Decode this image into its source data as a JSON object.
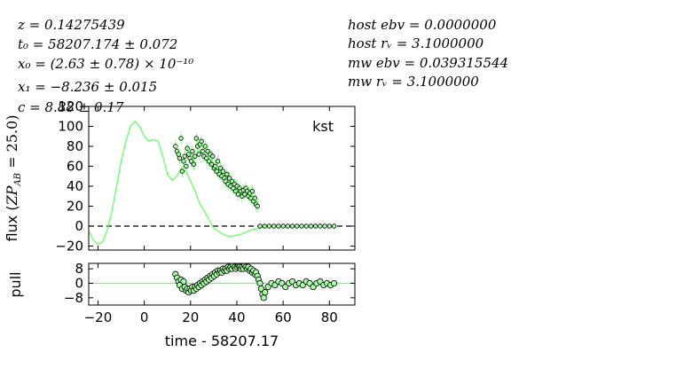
{
  "fit_params_left": [
    "z = 0.14275439",
    "t₀ = 58207.174 ± 0.072",
    "x₀ = (2.63 ± 0.78) × 10⁻¹⁰",
    "x₁ = −8.236 ± 0.015",
    "c = 8.88 ± 0.17"
  ],
  "fit_params_right": [
    "host ebv = 0.0000000",
    "host rᵥ = 3.1000000",
    "mw ebv = 0.039315544",
    "mw rᵥ = 3.1000000"
  ],
  "colors": {
    "model": "#66ff66",
    "points": "#a6ffa6",
    "edge": "#000000",
    "zero_line": "#000000"
  },
  "chart_data": [
    {
      "type": "scatter",
      "panel": "flux",
      "band_label": "kst",
      "ylabel": "flux (ZPₐʙ = 25.0)",
      "ylabel_parts": {
        "main": "flux (",
        "sub": "ZP",
        "subscript": "AB",
        "tail": " = 25.0)"
      },
      "xlim": [
        -24,
        91
      ],
      "ylim": [
        -24,
        120
      ],
      "yticks": [
        -20,
        0,
        20,
        40,
        60,
        80,
        100,
        120
      ],
      "xticks": [
        -20,
        0,
        20,
        40,
        60,
        80
      ],
      "zero_line": "dashed",
      "model": {
        "x": [
          -24,
          -22,
          -20,
          -18,
          -16,
          -14,
          -12,
          -10,
          -8,
          -6,
          -4,
          -2,
          0,
          2,
          4,
          6,
          8,
          10,
          12,
          14,
          16,
          18,
          20,
          22,
          24,
          26,
          28,
          30,
          32,
          34,
          36,
          38,
          40,
          42,
          44,
          46,
          48,
          50,
          52,
          54
        ],
        "y": [
          -5,
          -14,
          -18,
          -16,
          -4,
          15,
          40,
          65,
          85,
          100,
          105,
          100,
          90,
          85,
          87,
          85,
          70,
          52,
          46,
          50,
          58,
          55,
          45,
          35,
          22,
          15,
          6,
          -2,
          -5,
          -8,
          -10,
          -10,
          -9,
          -8,
          -6,
          -4,
          -3,
          -2,
          -1,
          0
        ]
      },
      "series": [
        {
          "name": "kst",
          "x": [
            13.5,
            14.2,
            14.8,
            15.3,
            15.9,
            16.4,
            17.0,
            17.5,
            18.1,
            18.6,
            19.2,
            19.7,
            20.3,
            20.8,
            21.4,
            21.9,
            22.5,
            23.0,
            23.6,
            24.1,
            24.7,
            25.2,
            25.8,
            26.3,
            26.9,
            27.4,
            28.0,
            28.5,
            29.1,
            29.6,
            30.2,
            30.7,
            31.3,
            31.8,
            32.4,
            32.9,
            33.5,
            34.0,
            34.6,
            35.1,
            35.7,
            36.2,
            36.8,
            37.3,
            37.9,
            38.4,
            39.0,
            39.5,
            40.1,
            40.6,
            41.2,
            41.7,
            42.3,
            42.8,
            43.4,
            43.9,
            44.5,
            45.0,
            45.6,
            46.1,
            46.7,
            47.2,
            47.8,
            48.3,
            48.9,
            50,
            52,
            54,
            56,
            58,
            60,
            62,
            64,
            66,
            68,
            70,
            72,
            74,
            76,
            78,
            80,
            82
          ],
          "y": [
            80,
            75,
            72,
            68,
            88,
            55,
            65,
            70,
            60,
            78,
            72,
            68,
            65,
            75,
            62,
            70,
            88,
            80,
            72,
            82,
            85,
            75,
            70,
            80,
            68,
            75,
            65,
            72,
            62,
            70,
            58,
            60,
            55,
            65,
            52,
            58,
            50,
            55,
            48,
            45,
            52,
            42,
            48,
            40,
            45,
            38,
            42,
            35,
            40,
            32,
            38,
            35,
            30,
            36,
            32,
            38,
            35,
            30,
            33,
            28,
            35,
            25,
            28,
            22,
            20,
            0,
            0,
            0,
            0,
            0,
            0,
            0,
            0,
            0,
            0,
            0,
            0,
            0,
            0,
            0,
            0,
            0
          ]
        }
      ]
    },
    {
      "type": "scatter",
      "panel": "pull",
      "ylabel": "pull",
      "xlabel": "time - 58207.17",
      "xlim": [
        -24,
        91
      ],
      "ylim": [
        -12,
        11
      ],
      "yticks": [
        -8,
        0,
        8
      ],
      "xticks": [
        -20,
        0,
        20,
        40,
        60,
        80
      ],
      "zero_line": "solid",
      "series": [
        {
          "name": "pull",
          "x": [
            13.5,
            14.2,
            14.8,
            15.3,
            15.9,
            16.4,
            17.0,
            17.5,
            18.1,
            18.6,
            19.2,
            19.7,
            20.3,
            20.8,
            21.4,
            21.9,
            22.5,
            23.0,
            23.6,
            24.1,
            24.7,
            25.2,
            25.8,
            26.3,
            26.9,
            27.4,
            28.0,
            28.5,
            29.1,
            29.6,
            30.2,
            30.7,
            31.3,
            31.8,
            32.4,
            32.9,
            33.5,
            34.0,
            34.6,
            35.1,
            35.7,
            36.2,
            36.8,
            37.3,
            37.9,
            38.4,
            39.0,
            39.5,
            40.1,
            40.6,
            41.2,
            41.7,
            42.3,
            42.8,
            43.4,
            43.9,
            44.5,
            45.0,
            45.6,
            46.1,
            46.7,
            47.2,
            47.8,
            48.3,
            48.9,
            49.4,
            50.0,
            50.5,
            51.1,
            51.6,
            52.2,
            53.5,
            55,
            56.5,
            58,
            59.5,
            61,
            62.5,
            64,
            65.5,
            67,
            68.5,
            70,
            71.5,
            73,
            74.5,
            76,
            77.5,
            79,
            80.5,
            82
          ],
          "y": [
            5,
            3,
            1,
            -1,
            2,
            -3,
            1,
            -2,
            -4,
            -3,
            -5,
            -3,
            -4,
            -2,
            -4,
            -2,
            -3,
            -1,
            -2,
            0,
            -1,
            1,
            0,
            2,
            1,
            3,
            2,
            4,
            3,
            5,
            4,
            6,
            5,
            7,
            6,
            7,
            6,
            8,
            7,
            8,
            7,
            9,
            8,
            9,
            8,
            10,
            9,
            8,
            9,
            10,
            9,
            8,
            9,
            8,
            10,
            9,
            8,
            9,
            7,
            8,
            6,
            7,
            5,
            6,
            4,
            2,
            0,
            -3,
            -6,
            -8,
            -5,
            -2,
            0,
            -1,
            1,
            0,
            -2,
            0,
            1,
            -1,
            0,
            -1,
            1,
            0,
            -2,
            0,
            1,
            -1,
            0,
            -1,
            0
          ]
        }
      ]
    }
  ]
}
